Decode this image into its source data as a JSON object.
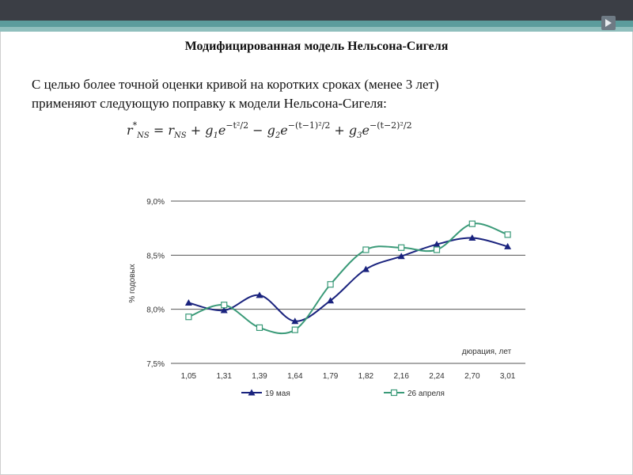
{
  "slide": {
    "title": "Модифицированная модель Нельсона-Сигеля",
    "paragraph_line1": "С целью более точной оценки кривой на коротких сроках (менее 3 лет)",
    "paragraph_line2": "применяют следующую поправку к модели Нельсона-Сигеля:",
    "formula": {
      "lhs": "r",
      "lhs_sup": "*",
      "lhs_sub": "NS",
      "eq": "=",
      "r": "r",
      "r_sub": "NS",
      "plus1": "+",
      "g1": "g",
      "g1_sub": "1",
      "e1": "e",
      "e1_sup": "−t²/2",
      "minus": "−",
      "g2": "g",
      "g2_sub": "2",
      "e2": "e",
      "e2_sup": "−(t−1)²/2",
      "plus2": "+",
      "g3": "g",
      "g3_sub": "3",
      "e3": "e",
      "e3_sup": "−(t−2)²/2"
    },
    "colors": {
      "topbar": "#3b3e45",
      "stripe1": "#5b9c9c",
      "stripe2": "#8fbfbd"
    }
  },
  "chart_data": {
    "type": "line",
    "categories": [
      "1,05",
      "1,31",
      "1,39",
      "1,64",
      "1,79",
      "1,82",
      "2,16",
      "2,24",
      "2,70",
      "3,01"
    ],
    "ylabel": "% годовых",
    "xlabel": "дюрация, лет",
    "ylim": [
      7.5,
      9.0
    ],
    "yticks": [
      {
        "value": 9.0,
        "label": "9,0%"
      },
      {
        "value": 8.5,
        "label": "8,5%"
      },
      {
        "value": 8.0,
        "label": "8,0%"
      },
      {
        "value": 7.5,
        "label": "7,5%"
      }
    ],
    "grid": true,
    "legend_position": "bottom",
    "series": [
      {
        "name": "19 мая",
        "color": "#1a237e",
        "marker": "triangle",
        "values": [
          8.06,
          7.99,
          8.13,
          7.89,
          8.08,
          8.37,
          8.49,
          8.6,
          8.66,
          8.58
        ]
      },
      {
        "name": "26 апреля",
        "color": "#3a9a78",
        "marker": "square",
        "values": [
          7.93,
          8.04,
          7.83,
          7.81,
          8.23,
          8.55,
          8.57,
          8.55,
          8.79,
          8.69
        ]
      }
    ]
  }
}
